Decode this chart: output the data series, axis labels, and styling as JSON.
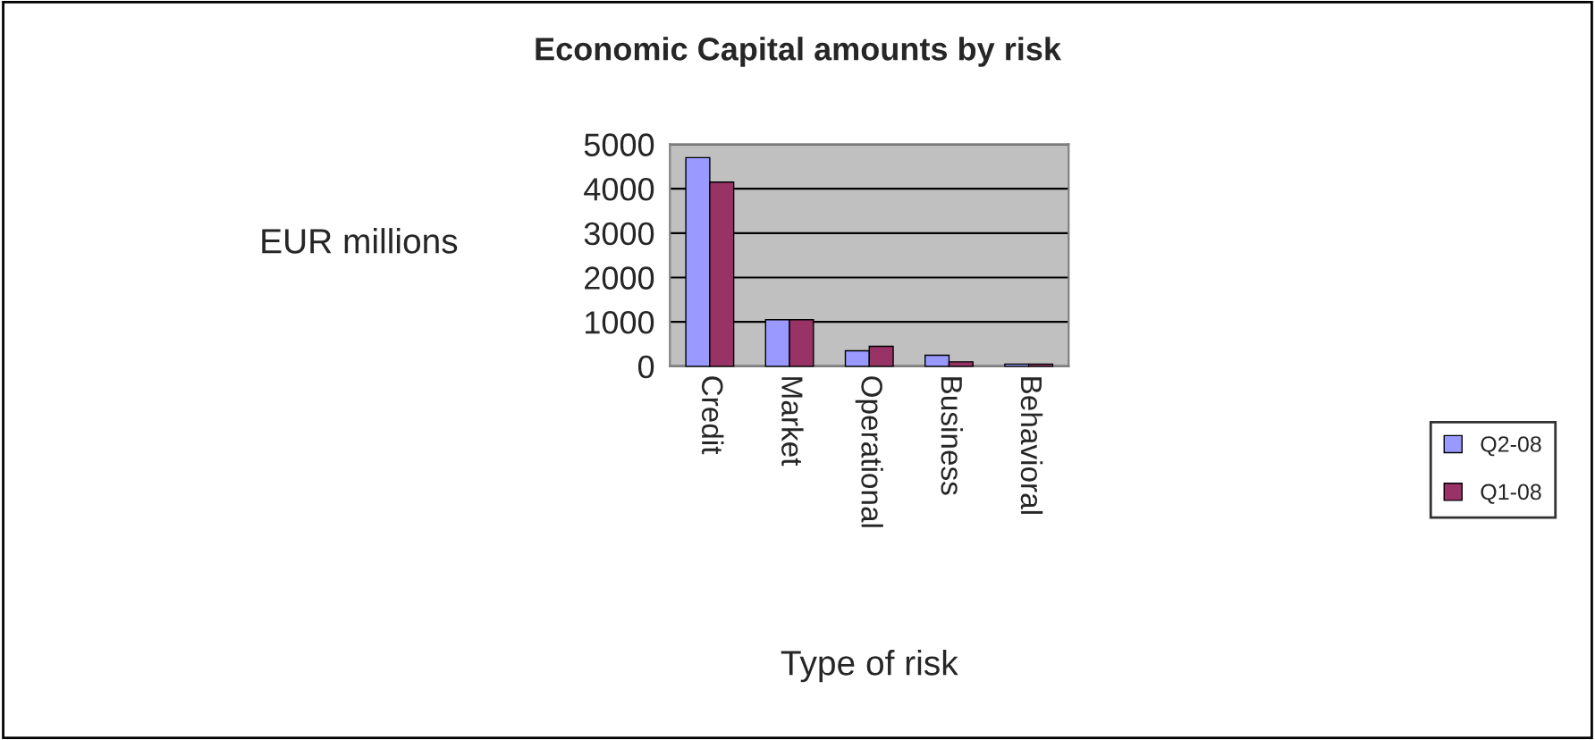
{
  "chart_data": {
    "type": "bar",
    "title": "Economic Capital amounts by risk",
    "xlabel": "Type of risk",
    "ylabel": "EUR millions",
    "categories": [
      "Credit",
      "Market",
      "Operational",
      "Business",
      "Behavioral"
    ],
    "series": [
      {
        "name": "Q2-08",
        "color": "#9999ff",
        "values": [
          4700,
          1050,
          350,
          250,
          50
        ]
      },
      {
        "name": "Q1-08",
        "color": "#993366",
        "values": [
          4150,
          1050,
          450,
          100,
          50
        ]
      }
    ],
    "ylim": [
      0,
      5000
    ],
    "yticks": [
      0,
      1000,
      2000,
      3000,
      4000,
      5000
    ],
    "grid": "y",
    "legend": "right"
  }
}
